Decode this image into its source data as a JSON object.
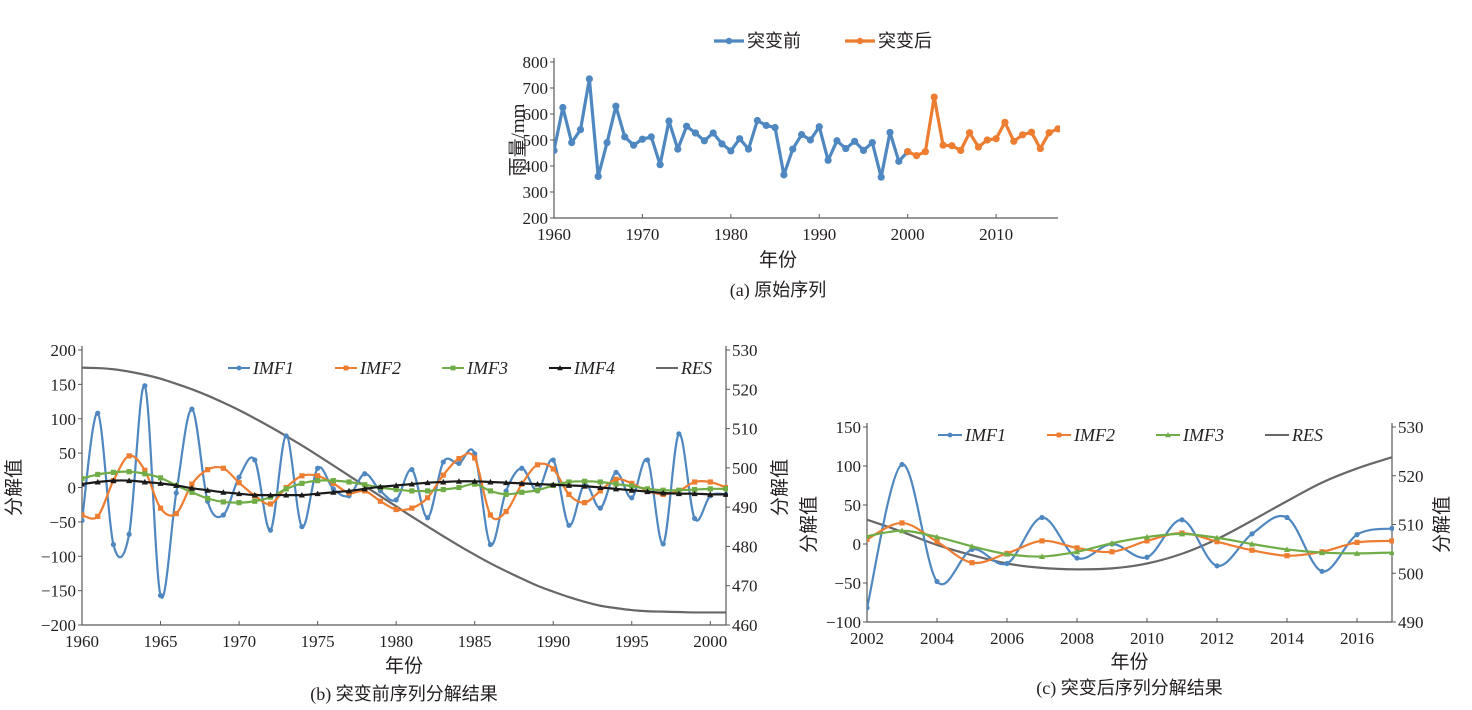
{
  "chart_data": [
    {
      "id": "a",
      "type": "line",
      "caption": "(a) 原始序列",
      "xlabel": "年份",
      "ylabel": "雨量/mm",
      "xlim": [
        1960,
        2017
      ],
      "ylim": [
        200,
        800
      ],
      "xticks": [
        1960,
        1970,
        1980,
        1990,
        2000,
        2010
      ],
      "yticks": [
        200,
        300,
        400,
        500,
        600,
        700,
        800
      ],
      "legend_position": "top-center",
      "series": [
        {
          "name": "突变前",
          "color": "#4f87c0",
          "marker": "circle",
          "x": [
            1960,
            1961,
            1962,
            1963,
            1964,
            1965,
            1966,
            1967,
            1968,
            1969,
            1970,
            1971,
            1972,
            1973,
            1974,
            1975,
            1976,
            1977,
            1978,
            1979,
            1980,
            1981,
            1982,
            1983,
            1984,
            1985,
            1986,
            1987,
            1988,
            1989,
            1990,
            1991,
            1992,
            1993,
            1994,
            1995,
            1996,
            1997,
            1998,
            1999,
            2000
          ],
          "values": [
            460,
            625,
            490,
            540,
            735,
            360,
            490,
            630,
            512,
            480,
            503,
            512,
            405,
            573,
            465,
            553,
            527,
            497,
            527,
            485,
            458,
            505,
            465,
            575,
            556,
            548,
            366,
            465,
            521,
            500,
            551,
            422,
            497,
            467,
            495,
            460,
            490,
            357,
            529,
            418,
            455
          ]
        },
        {
          "name": "突变后",
          "color": "#ed7d31",
          "marker": "circle",
          "x": [
            2000,
            2001,
            2002,
            2003,
            2004,
            2005,
            2006,
            2007,
            2008,
            2009,
            2010,
            2011,
            2012,
            2013,
            2014,
            2015,
            2016,
            2017
          ],
          "values": [
            455,
            440,
            455,
            665,
            480,
            478,
            460,
            528,
            473,
            500,
            505,
            568,
            495,
            520,
            530,
            467,
            528,
            543
          ]
        }
      ]
    },
    {
      "id": "b",
      "type": "line",
      "caption": "(b) 突变前序列分解结果",
      "xlabel": "年份",
      "ylabel": "分解值",
      "y2label": "分解值",
      "xlim": [
        1960,
        2001
      ],
      "ylim": [
        -200,
        200
      ],
      "y2lim": [
        460,
        530
      ],
      "xticks": [
        1960,
        1965,
        1970,
        1975,
        1980,
        1985,
        1990,
        1995,
        2000
      ],
      "yticks": [
        -200,
        -150,
        -100,
        -50,
        0,
        50,
        100,
        150,
        200
      ],
      "y2ticks": [
        460,
        470,
        480,
        490,
        500,
        510,
        520,
        530
      ],
      "legend_position": "top-right",
      "x": [
        1960,
        1961,
        1962,
        1963,
        1964,
        1965,
        1966,
        1967,
        1968,
        1969,
        1970,
        1971,
        1972,
        1973,
        1974,
        1975,
        1976,
        1977,
        1978,
        1979,
        1980,
        1981,
        1982,
        1983,
        1984,
        1985,
        1986,
        1987,
        1988,
        1989,
        1990,
        1991,
        1992,
        1993,
        1994,
        1995,
        1996,
        1997,
        1998,
        1999,
        2000,
        2001
      ],
      "series": [
        {
          "name": "IMF1",
          "color": "#4f87c0",
          "marker": "circle",
          "axis": "left",
          "values": [
            -48,
            108,
            -83,
            -68,
            148,
            -157,
            -8,
            114,
            -20,
            -40,
            15,
            40,
            -62,
            75,
            -57,
            28,
            -2,
            -12,
            20,
            -5,
            -18,
            26,
            -44,
            37,
            35,
            49,
            -83,
            -5,
            28,
            -5,
            40,
            -55,
            5,
            -30,
            22,
            -15,
            40,
            -82,
            78,
            -45,
            -12,
            -10
          ]
        },
        {
          "name": "IMF2",
          "color": "#ed7d31",
          "marker": "square",
          "axis": "left",
          "values": [
            -40,
            -42,
            10,
            46,
            25,
            -30,
            -38,
            5,
            26,
            28,
            7,
            -12,
            -24,
            0,
            17,
            17,
            6,
            -8,
            -5,
            -20,
            -32,
            -30,
            -15,
            18,
            42,
            43,
            -40,
            -35,
            5,
            33,
            27,
            -10,
            -22,
            -5,
            12,
            6,
            -5,
            -10,
            -5,
            8,
            8,
            0
          ]
        },
        {
          "name": "IMF3",
          "color": "#70ad47",
          "marker": "square",
          "axis": "left",
          "values": [
            13,
            19,
            22,
            23,
            20,
            14,
            3,
            -7,
            -16,
            -21,
            -22,
            -20,
            -14,
            -2,
            6,
            10,
            10,
            8,
            4,
            0,
            -3,
            -5,
            -5,
            -3,
            0,
            5,
            -5,
            -10,
            -7,
            -4,
            3,
            8,
            9,
            8,
            5,
            2,
            -2,
            -4,
            -4,
            -3,
            -2,
            -2
          ]
        },
        {
          "name": "IMF4",
          "color": "#1a1a1a",
          "marker": "triangle",
          "axis": "left",
          "values": [
            5,
            8,
            10,
            10,
            8,
            6,
            3,
            -1,
            -4,
            -7,
            -9,
            -11,
            -11,
            -11,
            -11,
            -9,
            -7,
            -5,
            -2,
            1,
            3,
            5,
            7,
            8,
            9,
            9,
            8,
            7,
            6,
            5,
            4,
            3,
            2,
            0,
            -2,
            -4,
            -6,
            -8,
            -9,
            -9,
            -10,
            -10
          ]
        },
        {
          "name": "RES",
          "color": "#676767",
          "marker": "none",
          "axis": "right",
          "values": [
            525.5,
            525.4,
            525.1,
            524.5,
            523.7,
            522.7,
            521.4,
            520.0,
            518.4,
            516.6,
            514.7,
            512.6,
            510.4,
            508.1,
            505.7,
            503.2,
            500.6,
            498.0,
            495.4,
            492.8,
            490.2,
            487.6,
            485.1,
            482.6,
            480.2,
            477.9,
            475.7,
            473.7,
            471.8,
            470.0,
            468.5,
            467.1,
            465.9,
            464.9,
            464.3,
            463.8,
            463.5,
            463.4,
            463.3,
            463.2,
            463.2,
            463.2
          ]
        }
      ]
    },
    {
      "id": "c",
      "type": "line",
      "caption": "(c) 突变后序列分解结果",
      "xlabel": "年份",
      "ylabel": "分解值",
      "y2label": "分解值",
      "xlim": [
        2002,
        2017
      ],
      "ylim": [
        -100,
        150
      ],
      "y2lim": [
        490,
        530
      ],
      "xticks": [
        2002,
        2004,
        2006,
        2008,
        2010,
        2012,
        2014,
        2016
      ],
      "yticks": [
        -100,
        -50,
        0,
        50,
        100,
        150
      ],
      "y2ticks": [
        490,
        500,
        510,
        520,
        530
      ],
      "legend_position": "top",
      "x": [
        2002,
        2003,
        2004,
        2005,
        2006,
        2007,
        2008,
        2009,
        2010,
        2011,
        2012,
        2013,
        2014,
        2015,
        2016,
        2017
      ],
      "series": [
        {
          "name": "IMF1",
          "color": "#4f87c0",
          "marker": "circle",
          "axis": "left",
          "values": [
            -82,
            102,
            -48,
            -7,
            -25,
            34,
            -18,
            0,
            -17,
            31,
            -28,
            13,
            34,
            -35,
            12,
            20
          ]
        },
        {
          "name": "IMF2",
          "color": "#ed7d31",
          "marker": "square",
          "axis": "left",
          "values": [
            6,
            27,
            3,
            -24,
            -12,
            4,
            -5,
            -10,
            4,
            14,
            3,
            -8,
            -15,
            -10,
            2,
            4
          ]
        },
        {
          "name": "IMF3",
          "color": "#70ad47",
          "marker": "triangle",
          "axis": "left",
          "values": [
            10,
            17,
            9,
            -3,
            -13,
            -16,
            -10,
            1,
            9,
            13,
            8,
            0,
            -7,
            -11,
            -12,
            -11
          ]
        },
        {
          "name": "RES",
          "color": "#676767",
          "marker": "none",
          "axis": "right",
          "values": [
            511.0,
            508.5,
            505.8,
            503.7,
            502.0,
            501.1,
            500.8,
            501.0,
            502.0,
            504.0,
            507.0,
            510.8,
            514.8,
            518.6,
            521.5,
            523.8
          ]
        }
      ]
    }
  ]
}
